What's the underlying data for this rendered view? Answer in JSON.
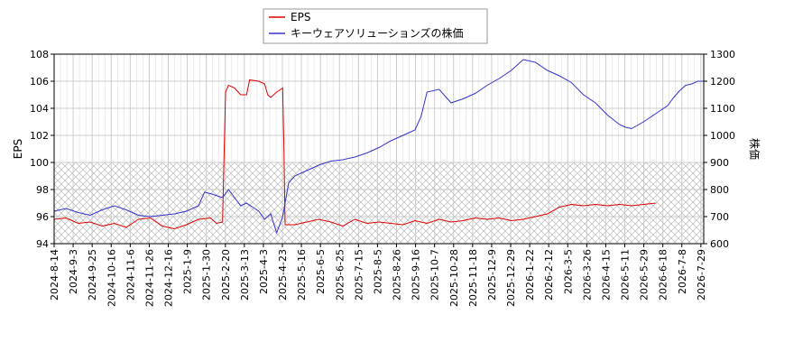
{
  "chart_data": {
    "type": "line",
    "legend": {
      "placement": "top-center",
      "entries": [
        "EPS",
        "キーウェアソリューションズの株価"
      ]
    },
    "x_tick_labels": [
      "2024-8-14",
      "2024-9-3",
      "2024-9-25",
      "2024-10-16",
      "2024-11-6",
      "2024-11-26",
      "2024-12-16",
      "2025-1-9",
      "2025-1-30",
      "2025-2-20",
      "2025-3-13",
      "2025-4-3",
      "2025-4-23",
      "2025-5-16",
      "2025-6-5",
      "2025-6-25",
      "2025-7-15",
      "2025-8-5",
      "2025-8-26",
      "2025-9-16",
      "2025-10-7",
      "2025-10-28",
      "2025-11-18",
      "2025-12-9",
      "2025-12-29",
      "2026-1-22",
      "2026-2-12",
      "2026-3-5",
      "2026-3-26",
      "2026-4-15",
      "2026-5-11",
      "2026-5-29",
      "2026-6-18",
      "2026-7-8",
      "2026-7-29"
    ],
    "y_left": {
      "label": "EPS",
      "lim": [
        94,
        108
      ],
      "ticks": [
        94,
        96,
        98,
        100,
        102,
        104,
        106,
        108
      ]
    },
    "y_right": {
      "label": "株価",
      "lim": [
        600,
        1300
      ],
      "ticks": [
        600,
        700,
        800,
        900,
        1000,
        1100,
        1200,
        1300
      ]
    },
    "shaded_region": {
      "axis": "left",
      "from": 94,
      "to": 100,
      "pattern": "crosshatch"
    },
    "grid": true,
    "series": [
      {
        "name": "EPS",
        "axis": "left",
        "color": "#dd0000",
        "points": [
          [
            0,
            95.8
          ],
          [
            2,
            95.9
          ],
          [
            4,
            95.5
          ],
          [
            6,
            95.6
          ],
          [
            8,
            95.3
          ],
          [
            10,
            95.5
          ],
          [
            12,
            95.2
          ],
          [
            14,
            95.8
          ],
          [
            16,
            95.9
          ],
          [
            18,
            95.3
          ],
          [
            20,
            95.1
          ],
          [
            22,
            95.4
          ],
          [
            24,
            95.8
          ],
          [
            26,
            95.9
          ],
          [
            27,
            95.5
          ],
          [
            28,
            95.6
          ],
          [
            28.2,
            99.5
          ],
          [
            28.5,
            105.2
          ],
          [
            29,
            105.7
          ],
          [
            30,
            105.5
          ],
          [
            31,
            105.0
          ],
          [
            32,
            105.0
          ],
          [
            32.5,
            106.1
          ],
          [
            34,
            106.0
          ],
          [
            35,
            105.8
          ],
          [
            35.5,
            105.0
          ],
          [
            36,
            104.8
          ],
          [
            37,
            105.2
          ],
          [
            38,
            105.5
          ],
          [
            38.2,
            101.0
          ],
          [
            38.4,
            95.4
          ],
          [
            40,
            95.4
          ],
          [
            42,
            95.6
          ],
          [
            44,
            95.8
          ],
          [
            46,
            95.6
          ],
          [
            48,
            95.3
          ],
          [
            50,
            95.8
          ],
          [
            52,
            95.5
          ],
          [
            54,
            95.6
          ],
          [
            56,
            95.5
          ],
          [
            58,
            95.4
          ],
          [
            60,
            95.7
          ],
          [
            62,
            95.5
          ],
          [
            64,
            95.8
          ],
          [
            66,
            95.6
          ],
          [
            68,
            95.7
          ],
          [
            70,
            95.9
          ],
          [
            72,
            95.8
          ],
          [
            74,
            95.9
          ],
          [
            76,
            95.7
          ],
          [
            78,
            95.8
          ],
          [
            80,
            96.0
          ],
          [
            82,
            96.2
          ],
          [
            84,
            96.7
          ],
          [
            86,
            96.9
          ],
          [
            88,
            96.8
          ],
          [
            90,
            96.9
          ],
          [
            92,
            96.8
          ],
          [
            94,
            96.9
          ],
          [
            96,
            96.8
          ],
          [
            98,
            96.9
          ],
          [
            100,
            97.0
          ]
        ]
      },
      {
        "name": "キーウェアソリューションズの株価",
        "axis": "right",
        "color": "#3333cc",
        "points": [
          [
            0,
            720
          ],
          [
            2,
            730
          ],
          [
            4,
            715
          ],
          [
            6,
            705
          ],
          [
            8,
            725
          ],
          [
            10,
            740
          ],
          [
            12,
            725
          ],
          [
            14,
            705
          ],
          [
            16,
            700
          ],
          [
            18,
            705
          ],
          [
            20,
            710
          ],
          [
            22,
            720
          ],
          [
            24,
            740
          ],
          [
            25,
            790
          ],
          [
            26,
            785
          ],
          [
            28,
            770
          ],
          [
            29,
            800
          ],
          [
            30,
            770
          ],
          [
            31,
            740
          ],
          [
            32,
            750
          ],
          [
            33,
            735
          ],
          [
            34,
            720
          ],
          [
            35,
            690
          ],
          [
            36,
            710
          ],
          [
            37,
            640
          ],
          [
            38,
            700
          ],
          [
            39,
            825
          ],
          [
            40,
            850
          ],
          [
            42,
            870
          ],
          [
            44,
            890
          ],
          [
            46,
            905
          ],
          [
            48,
            910
          ],
          [
            50,
            920
          ],
          [
            52,
            935
          ],
          [
            54,
            955
          ],
          [
            56,
            980
          ],
          [
            58,
            1000
          ],
          [
            60,
            1020
          ],
          [
            61,
            1070
          ],
          [
            62,
            1160
          ],
          [
            64,
            1170
          ],
          [
            66,
            1120
          ],
          [
            68,
            1135
          ],
          [
            70,
            1155
          ],
          [
            72,
            1185
          ],
          [
            74,
            1210
          ],
          [
            76,
            1240
          ],
          [
            78,
            1280
          ],
          [
            80,
            1270
          ],
          [
            82,
            1240
          ],
          [
            84,
            1220
          ],
          [
            86,
            1195
          ],
          [
            88,
            1150
          ],
          [
            90,
            1120
          ],
          [
            92,
            1075
          ],
          [
            94,
            1040
          ],
          [
            95,
            1030
          ],
          [
            96,
            1025
          ],
          [
            98,
            1050
          ],
          [
            100,
            1080
          ],
          [
            102,
            1110
          ],
          [
            103,
            1140
          ],
          [
            104,
            1165
          ],
          [
            105,
            1185
          ],
          [
            106,
            1190
          ],
          [
            107,
            1200
          ],
          [
            108,
            1200
          ]
        ]
      }
    ]
  }
}
